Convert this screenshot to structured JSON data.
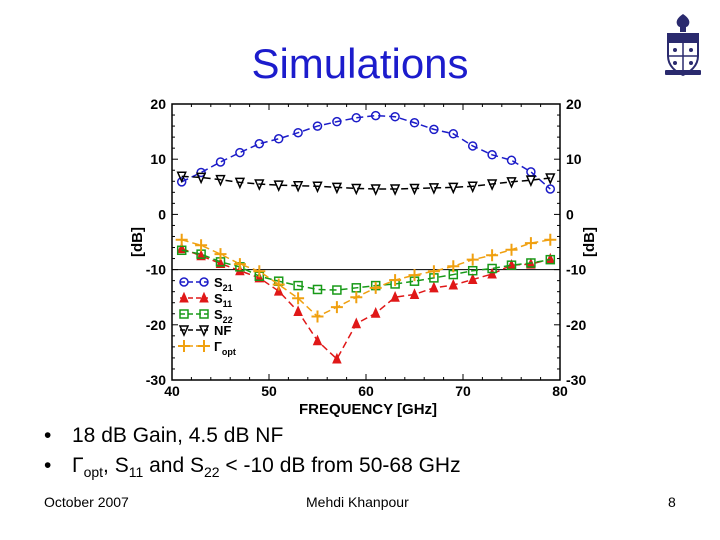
{
  "slide": {
    "title": "Simulations",
    "bullets": [
      "18 dB Gain, 4.5 dB NF",
      "Γopt, S11 and S22 < -10 dB from 50-68 GHz"
    ],
    "footer_left": "October 2007",
    "footer_center": "Mehdi Khanpour",
    "footer_right": "8",
    "logo": "university-crest"
  },
  "chart_data": {
    "type": "line",
    "xlabel": "FREQUENCY [GHz]",
    "ylabel": "[dB]",
    "ylabel_right": "[dB]",
    "xlim": [
      40,
      80
    ],
    "ylim": [
      -30,
      20
    ],
    "xticks": [
      40,
      50,
      60,
      70,
      80
    ],
    "yticks": [
      20,
      10,
      0,
      -10,
      -20,
      -30
    ],
    "reference_line_y": -10,
    "x": [
      40,
      43,
      46,
      49,
      52,
      55,
      58,
      61,
      64,
      67,
      70,
      73,
      76,
      79
    ],
    "legend": {
      "placement": "bottom-left"
    },
    "series": [
      {
        "name": "S21",
        "label_main": "S",
        "label_sub": "21",
        "marker": "circle",
        "color": "#1c1cc8",
        "x": [
          41,
          43,
          45,
          47,
          49,
          51,
          53,
          55,
          57,
          59,
          61,
          63,
          65,
          67,
          69,
          71,
          73,
          75,
          77,
          79
        ],
        "values": [
          5.9,
          7.6,
          9.5,
          11.2,
          12.8,
          13.7,
          14.8,
          16.0,
          16.8,
          17.5,
          17.9,
          17.7,
          16.6,
          15.4,
          14.6,
          12.4,
          10.8,
          9.8,
          7.7,
          4.6
        ]
      },
      {
        "name": "S11",
        "label_main": "S",
        "label_sub": "11",
        "marker": "triangle-up",
        "color": "#e01818",
        "x": [
          41,
          43,
          45,
          47,
          49,
          51,
          53,
          55,
          57,
          59,
          61,
          63,
          65,
          67,
          69,
          71,
          73,
          75,
          77,
          79
        ],
        "values": [
          -6.2,
          -7.5,
          -8.9,
          -10.2,
          -11.5,
          -13.9,
          -17.6,
          -22.9,
          -26.2,
          -19.8,
          -17.9,
          -15.0,
          -14.5,
          -13.3,
          -12.8,
          -11.8,
          -10.8,
          -9.2,
          -9.0,
          -8.1
        ]
      },
      {
        "name": "S22",
        "label_main": "S",
        "label_sub": "22",
        "marker": "square",
        "color": "#189a18",
        "x": [
          41,
          43,
          45,
          47,
          49,
          51,
          53,
          55,
          57,
          59,
          61,
          63,
          65,
          67,
          69,
          71,
          73,
          75,
          77,
          79
        ],
        "values": [
          -6.5,
          -7.2,
          -8.6,
          -9.5,
          -11.2,
          -12.1,
          -12.9,
          -13.6,
          -13.7,
          -13.3,
          -12.9,
          -12.6,
          -12.1,
          -11.5,
          -10.9,
          -10.2,
          -9.8,
          -9.2,
          -8.8,
          -8.2
        ]
      },
      {
        "name": "NF",
        "label_main": "NF",
        "label_sub": "",
        "marker": "triangle-down",
        "color": "#000000",
        "x": [
          41,
          43,
          45,
          47,
          49,
          51,
          53,
          55,
          57,
          59,
          61,
          63,
          65,
          67,
          69,
          71,
          73,
          75,
          77,
          79
        ],
        "values": [
          6.9,
          6.7,
          6.3,
          5.8,
          5.5,
          5.3,
          5.2,
          5.1,
          4.9,
          4.7,
          4.6,
          4.6,
          4.7,
          4.8,
          4.9,
          5.1,
          5.5,
          5.9,
          6.2,
          6.6
        ]
      },
      {
        "name": "Γopt",
        "label_main": "Γ",
        "label_sub": "opt",
        "marker": "plus",
        "color": "#f0a010",
        "x": [
          41,
          43,
          45,
          47,
          49,
          51,
          53,
          55,
          57,
          59,
          61,
          63,
          65,
          67,
          69,
          71,
          73,
          75,
          77,
          79
        ],
        "values": [
          -4.6,
          -5.6,
          -7.2,
          -9.0,
          -10.3,
          -12.7,
          -15.2,
          -18.5,
          -16.8,
          -15.0,
          -13.3,
          -11.9,
          -11.0,
          -10.3,
          -9.4,
          -8.2,
          -7.4,
          -6.4,
          -5.2,
          -4.6
        ]
      }
    ]
  }
}
